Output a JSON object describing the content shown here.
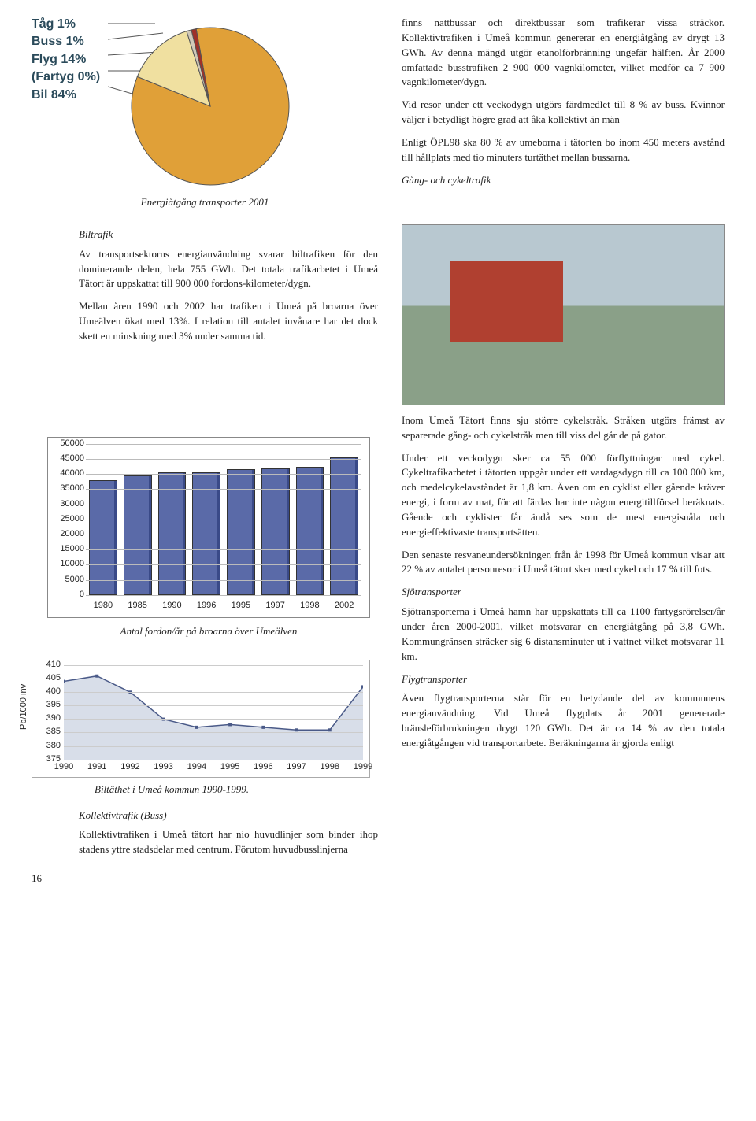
{
  "pie": {
    "labels": [
      "Tåg 1%",
      "Buss 1%",
      "Flyg 14%",
      "(Fartyg 0%)",
      "Bil 84%"
    ],
    "slices": [
      {
        "label": "Bil",
        "value": 84,
        "color": "#e0a038"
      },
      {
        "label": "Flyg",
        "value": 14,
        "color": "#f0e0a0"
      },
      {
        "label": "Buss",
        "value": 1,
        "color": "#d0c8b8"
      },
      {
        "label": "Tåg",
        "value": 1,
        "color": "#a03028"
      },
      {
        "label": "Fartyg",
        "value": 0,
        "color": "#ffffff"
      }
    ],
    "stroke": "#555555",
    "caption": "Energiåtgång transporter 2001"
  },
  "text": {
    "r1": "finns nattbussar och direktbussar som trafikerar vissa sträckor. Kollektivtrafiken i Umeå kommun genererar en energiåtgång av drygt 13 GWh. Av denna mängd utgör etanolförbränning ungefär hälften. År 2000 omfattade busstrafiken 2 900 000 vagnkilometer, vilket medför ca 7 900 vagnkilometer/dygn.",
    "r2": "Vid resor under ett veckodygn utgörs färdmedlet till 8 % av buss. Kvinnor väljer i betydligt högre grad att åka kollektivt än män",
    "r3": "Enligt ÖPL98 ska 80 % av umeborna i tätorten bo inom 450 meters avstånd till hållplats med tio minuters turtäthet mellan bussarna.",
    "r4": "Gång- och cykeltrafik",
    "bilh": "Biltrafik",
    "b1": "Av transportsektorns energianvändning svarar biltrafiken för den dominerande delen, hela 755 GWh. Det totala trafikarbetet i Umeå Tätort är uppskattat till 900 000 fordons-kilometer/dygn.",
    "b2": "Mellan åren 1990 och 2002 har trafiken i Umeå på broarna över Umeälven ökat med 13%. I relation till antalet invånare har det dock skett en minskning med 3% under samma tid.",
    "c1": "Inom Umeå Tätort finns sju större cykelstråk. Stråken utgörs främst av separerade gång- och cykelstråk men till viss del går de på gator.",
    "c2": "Under ett veckodygn sker ca 55 000 förflyttningar med cykel. Cykeltrafikarbetet i tätorten uppgår under ett vardagsdygn till ca 100 000 km, och medelcykelavståndet är 1,8 km. Även om en cyklist eller gående kräver energi, i form av mat, för att färdas har inte någon energitillförsel beräknats. Gående och cyklister får ändå ses som de mest energisnåla och energieffektivaste transportsätten.",
    "c3": "Den senaste resvaneundersökningen från år 1998 för Umeå kommun visar att 22 % av antalet personresor i Umeå tätort sker med cykel och 17 % till fots.",
    "sjoh": "Sjötransporter",
    "sjo": "Sjötransporterna i Umeå hamn har uppskattats till ca 1100 fartygsrörelser/år under åren 2000-2001, vilket motsvarar en energiåtgång på 3,8 GWh. Kommungränsen sträcker sig 6 distansminuter ut i vattnet vilket motsvarar 11 km.",
    "flyh": "Flygtransporter",
    "fly": "Även flygtransporterna står för en betydande del av kommunens energianvändning. Vid Umeå flygplats år 2001 genererade bränsleförbrukningen drygt 120 GWh. Det är ca 14 % av den totala energiåtgången vid transportarbete. Beräkningarna är gjorda enligt",
    "kollh": "Kollektivtrafik (Buss)",
    "koll": "Kollektivtrafiken i Umeå tätort har nio huvudlinjer som binder ihop stadens yttre stadsdelar med centrum. Förutom huvudbusslinjerna",
    "linecap": "Biltäthet i Umeå kommun 1990-1999.",
    "barcap": "Antal fordon/år på broarna över Umeälven",
    "page": "16"
  },
  "barChart": {
    "categories": [
      "1980",
      "1985",
      "1990",
      "1996",
      "1995",
      "1997",
      "1998",
      "2002"
    ],
    "values": [
      38000,
      39500,
      40500,
      40500,
      41500,
      42000,
      42500,
      45500
    ],
    "ylim": [
      0,
      50000
    ],
    "ytick_step": 5000,
    "bar_color": "#5a6aa8",
    "grid_color": "#bbbbbb",
    "frame_color": "#888888",
    "label_fontsize": 11
  },
  "lineChart": {
    "years": [
      1990,
      1991,
      1992,
      1993,
      1994,
      1995,
      1996,
      1997,
      1998,
      1999
    ],
    "values": [
      404,
      406,
      400,
      390,
      387,
      388,
      387,
      386,
      386,
      402
    ],
    "ylim": [
      375,
      410
    ],
    "ytick_step": 5,
    "ylabel": "Pb/1000 inv",
    "line_color": "#4a5a88",
    "fill_color": "#c8d0e0",
    "grid_color": "#cccccc",
    "label_fontsize": 11
  }
}
